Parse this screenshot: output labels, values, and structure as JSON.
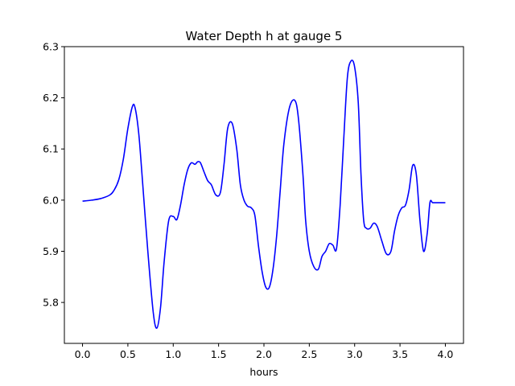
{
  "chart_data": {
    "type": "line",
    "title": "Water Depth h at gauge 5",
    "xlabel": "hours",
    "ylabel": "",
    "xlim": [
      -0.2,
      4.2
    ],
    "ylim": [
      5.72,
      6.3
    ],
    "xticks": [
      0.0,
      0.5,
      1.0,
      1.5,
      2.0,
      2.5,
      3.0,
      3.5,
      4.0
    ],
    "xtick_labels": [
      "0.0",
      "0.5",
      "1.0",
      "1.5",
      "2.0",
      "2.5",
      "3.0",
      "3.5",
      "4.0"
    ],
    "yticks": [
      5.8,
      5.9,
      6.0,
      6.1,
      6.2,
      6.3
    ],
    "ytick_labels": [
      "5.8",
      "5.9",
      "6.0",
      "6.1",
      "6.2",
      "6.3"
    ],
    "grid": false,
    "color": "#0000ff",
    "series": [
      {
        "x": [
          0.0,
          0.1,
          0.2,
          0.3,
          0.35,
          0.4,
          0.45,
          0.5,
          0.55,
          0.58,
          0.62,
          0.66,
          0.72,
          0.78,
          0.82,
          0.86,
          0.9,
          0.95,
          1.0,
          1.04,
          1.08,
          1.12,
          1.16,
          1.2,
          1.24,
          1.27,
          1.3,
          1.34,
          1.38,
          1.42,
          1.47,
          1.52,
          1.56,
          1.6,
          1.65,
          1.7,
          1.74,
          1.78,
          1.82,
          1.86,
          1.9,
          1.94,
          1.98,
          2.02,
          2.06,
          2.1,
          2.14,
          2.18,
          2.22,
          2.28,
          2.34,
          2.38,
          2.43,
          2.46,
          2.5,
          2.55,
          2.6,
          2.64,
          2.68,
          2.72,
          2.76,
          2.8,
          2.84,
          2.88,
          2.92,
          2.96,
          3.0,
          3.04,
          3.07,
          3.1,
          3.13,
          3.17,
          3.21,
          3.25,
          3.3,
          3.35,
          3.4,
          3.44,
          3.48,
          3.52,
          3.56,
          3.6,
          3.64,
          3.68,
          3.72,
          3.76,
          3.8,
          3.83,
          3.86,
          3.9,
          3.93,
          3.96,
          4.0
        ],
        "y": [
          5.998,
          6.0,
          6.003,
          6.01,
          6.02,
          6.04,
          6.08,
          6.14,
          6.183,
          6.18,
          6.13,
          6.04,
          5.9,
          5.78,
          5.75,
          5.79,
          5.88,
          5.96,
          5.968,
          5.962,
          5.99,
          6.03,
          6.06,
          6.073,
          6.07,
          6.075,
          6.073,
          6.055,
          6.038,
          6.03,
          6.01,
          6.015,
          6.07,
          6.14,
          6.15,
          6.1,
          6.03,
          6.0,
          5.988,
          5.985,
          5.97,
          5.91,
          5.86,
          5.83,
          5.83,
          5.865,
          5.93,
          6.02,
          6.11,
          6.18,
          6.195,
          6.16,
          6.05,
          5.96,
          5.9,
          5.87,
          5.865,
          5.89,
          5.9,
          5.915,
          5.912,
          5.905,
          5.99,
          6.12,
          6.24,
          6.272,
          6.26,
          6.19,
          6.05,
          5.96,
          5.945,
          5.945,
          5.955,
          5.948,
          5.92,
          5.895,
          5.9,
          5.94,
          5.97,
          5.985,
          5.99,
          6.02,
          6.068,
          6.05,
          5.96,
          5.9,
          5.935,
          5.995,
          5.995,
          5.995,
          5.995,
          5.995,
          5.995
        ]
      }
    ]
  }
}
